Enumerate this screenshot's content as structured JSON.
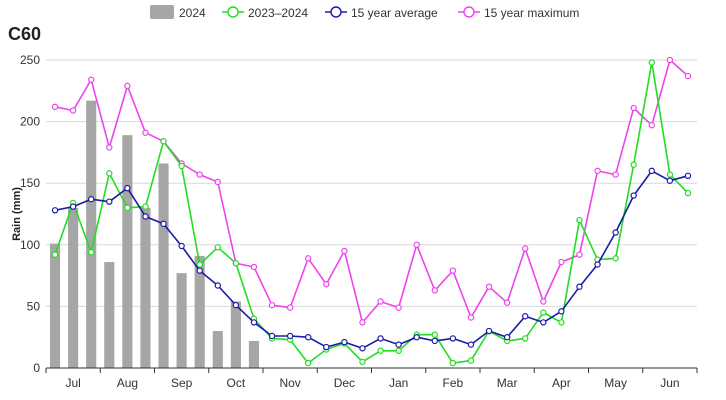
{
  "chart_data": {
    "type": "bar+line",
    "title": "C60",
    "ylabel": "Rain (mm)",
    "xlabel": "",
    "ylim": [
      0,
      250
    ],
    "yticks": [
      0,
      50,
      100,
      150,
      200,
      250
    ],
    "grid": true,
    "legend_position": "top",
    "month_labels": [
      "Jul",
      "Aug",
      "Sep",
      "Oct",
      "Nov",
      "Dec",
      "Jan",
      "Feb",
      "Mar",
      "Apr",
      "May",
      "Jun"
    ],
    "series": [
      {
        "name": "2024",
        "kind": "bar",
        "color": "#a6a6a6",
        "values": [
          101,
          130,
          217,
          86,
          189,
          130,
          166,
          77,
          91,
          30,
          54,
          22
        ]
      },
      {
        "name": "2023–2024",
        "kind": "line",
        "color": "#22dd22",
        "values": [
          92,
          134,
          94,
          158,
          130,
          131,
          184,
          164,
          84,
          98,
          85,
          40,
          24,
          23,
          4,
          15,
          20,
          5,
          14,
          14,
          27,
          27,
          4,
          6,
          30,
          22,
          24,
          45,
          37,
          120,
          88,
          89,
          165,
          248,
          157,
          142
        ]
      },
      {
        "name": "15 year average",
        "kind": "line",
        "color": "#1a1aa6",
        "values": [
          128,
          131,
          137,
          135,
          146,
          123,
          117,
          99,
          79,
          67,
          51,
          37,
          26,
          26,
          25,
          17,
          21,
          16,
          24,
          19,
          25,
          22,
          24,
          19,
          30,
          25,
          42,
          37,
          46,
          66,
          84,
          110,
          140,
          160,
          152,
          156
        ]
      },
      {
        "name": "15 year maximum",
        "kind": "line",
        "color": "#ee44ee",
        "values": [
          212,
          209,
          234,
          179,
          229,
          191,
          184,
          166,
          157,
          151,
          85,
          82,
          51,
          49,
          89,
          68,
          95,
          37,
          54,
          49,
          100,
          63,
          79,
          41,
          66,
          53,
          97,
          54,
          86,
          92,
          160,
          157,
          211,
          197,
          250,
          237
        ]
      }
    ]
  }
}
